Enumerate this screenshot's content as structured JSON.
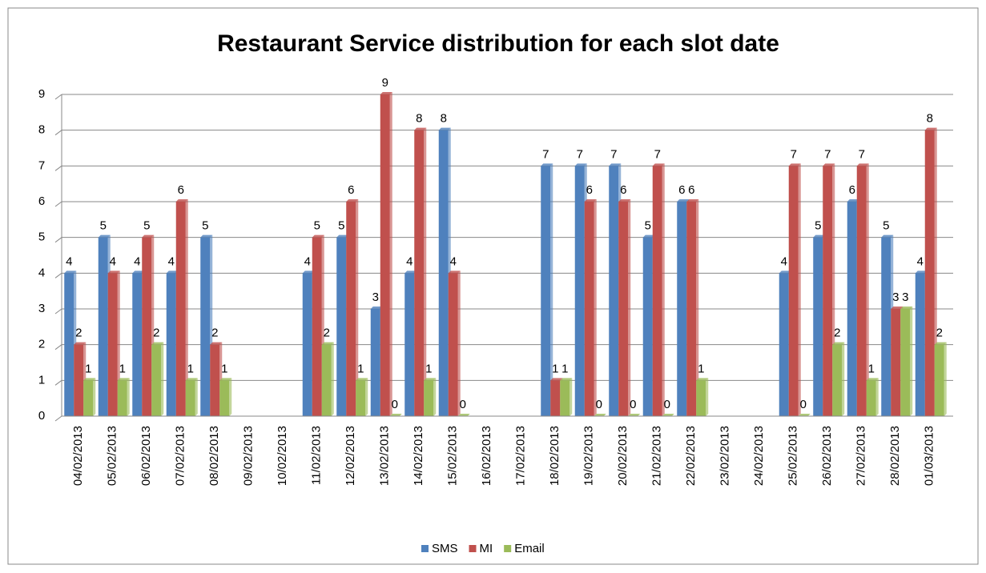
{
  "chart_data": {
    "type": "bar",
    "title": "Restaurant Service distribution  for each slot date",
    "categories": [
      "04/02/2013",
      "05/02/2013",
      "06/02/2013",
      "07/02/2013",
      "08/02/2013",
      "09/02/2013",
      "10/02/2013",
      "11/02/2013",
      "12/02/2013",
      "13/02/2013",
      "14/02/2013",
      "15/02/2013",
      "16/02/2013",
      "17/02/2013",
      "18/02/2013",
      "19/02/2013",
      "20/02/2013",
      "21/02/2013",
      "22/02/2013",
      "23/02/2013",
      "24/02/2013",
      "25/02/2013",
      "26/02/2013",
      "27/02/2013",
      "28/02/2013",
      "01/03/2013"
    ],
    "series": [
      {
        "name": "SMS",
        "color": "#4f81bd",
        "values": [
          4,
          5,
          4,
          4,
          5,
          null,
          null,
          4,
          5,
          3,
          4,
          8,
          null,
          null,
          7,
          7,
          7,
          5,
          6,
          null,
          null,
          4,
          5,
          6,
          5,
          4
        ]
      },
      {
        "name": "MI",
        "color": "#c0504d",
        "values": [
          2,
          4,
          5,
          6,
          2,
          null,
          null,
          5,
          6,
          9,
          8,
          4,
          null,
          null,
          1,
          6,
          6,
          7,
          6,
          null,
          null,
          7,
          7,
          7,
          3,
          8
        ]
      },
      {
        "name": "Email",
        "color": "#9bbb59",
        "values": [
          1,
          1,
          2,
          1,
          1,
          null,
          null,
          2,
          1,
          0,
          1,
          0,
          null,
          null,
          1,
          0,
          0,
          0,
          1,
          null,
          null,
          0,
          2,
          1,
          3,
          2
        ]
      }
    ],
    "ylim": [
      0,
      9
    ],
    "yticks": [
      0,
      1,
      2,
      3,
      4,
      5,
      6,
      7,
      8,
      9
    ],
    "grid": true,
    "legend": "bottom"
  }
}
